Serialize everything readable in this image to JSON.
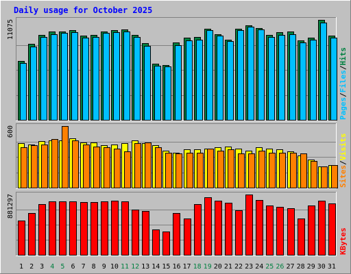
{
  "chart_data": [
    {
      "type": "bar",
      "panel": "hits-files-pages",
      "title": "Daily usage for October 2025",
      "y_max_label": "11075",
      "ylim": [
        0,
        11075
      ],
      "categories": [
        "1",
        "2",
        "3",
        "4",
        "5",
        "6",
        "7",
        "8",
        "9",
        "10",
        "11",
        "12",
        "13",
        "14",
        "15",
        "16",
        "17",
        "18",
        "19",
        "20",
        "21",
        "22",
        "23",
        "24",
        "25",
        "26",
        "27",
        "28",
        "29",
        "30",
        "31"
      ],
      "weekend_days": [
        "4",
        "5",
        "11",
        "12",
        "18",
        "19",
        "25",
        "26"
      ],
      "series": [
        {
          "name": "Hits",
          "color": "#008040",
          "values": [
            6500,
            8400,
            9400,
            9800,
            9800,
            9900,
            9300,
            9400,
            9800,
            9900,
            10000,
            9400,
            8500,
            6200,
            6100,
            8600,
            9100,
            9200,
            10100,
            9500,
            8900,
            10100,
            10500,
            10200,
            9400,
            9700,
            9800,
            8800,
            9100,
            11075,
            9300
          ]
        },
        {
          "name": "Files",
          "color": "#00c0ff",
          "values": [
            6300,
            8100,
            9200,
            9500,
            9600,
            9700,
            9100,
            9200,
            9600,
            9700,
            9800,
            9200,
            8200,
            6000,
            5900,
            8300,
            8800,
            8900,
            9900,
            9300,
            8700,
            9900,
            10300,
            10000,
            9200,
            9400,
            9500,
            8600,
            8900,
            10800,
            9100
          ]
        },
        {
          "name": "Pages",
          "color": "#00c0ff",
          "values": [
            0,
            0,
            0,
            0,
            0,
            0,
            0,
            0,
            0,
            0,
            0,
            0,
            0,
            0,
            0,
            0,
            0,
            0,
            0,
            0,
            0,
            0,
            0,
            0,
            0,
            0,
            0,
            0,
            0,
            0,
            0
          ]
        }
      ],
      "legend_labels": [
        "Pages",
        "Files",
        "Hits"
      ]
    },
    {
      "type": "bar",
      "panel": "visits-sites",
      "y_max_label": "600",
      "ylim": [
        0,
        600
      ],
      "series": [
        {
          "name": "Visits",
          "color": "#ffff00",
          "values": [
            430,
            420,
            450,
            460,
            460,
            480,
            440,
            440,
            410,
            420,
            430,
            460,
            430,
            410,
            360,
            340,
            370,
            370,
            380,
            390,
            400,
            380,
            360,
            390,
            380,
            370,
            350,
            310,
            270,
            210,
            220
          ]
        },
        {
          "name": "Sites",
          "color": "#ff8000",
          "values": [
            390,
            410,
            420,
            470,
            600,
            460,
            420,
            400,
            390,
            380,
            350,
            430,
            440,
            390,
            340,
            330,
            340,
            340,
            380,
            360,
            370,
            330,
            330,
            360,
            340,
            340,
            340,
            330,
            260,
            210,
            220
          ]
        }
      ],
      "legend_labels": [
        "Sites",
        "Visits"
      ]
    },
    {
      "type": "bar",
      "panel": "kbytes",
      "y_max_label": "881297",
      "ylim": [
        0,
        881297
      ],
      "series": [
        {
          "name": "KBytes",
          "color": "#ff0000",
          "values": [
            500000,
            610000,
            740000,
            780000,
            780000,
            780000,
            770000,
            770000,
            780000,
            790000,
            780000,
            660000,
            640000,
            370000,
            340000,
            610000,
            530000,
            740000,
            840000,
            790000,
            760000,
            650000,
            881297,
            800000,
            720000,
            700000,
            680000,
            530000,
            720000,
            790000,
            750000
          ]
        }
      ],
      "legend_labels": [
        "KBytes"
      ]
    }
  ]
}
